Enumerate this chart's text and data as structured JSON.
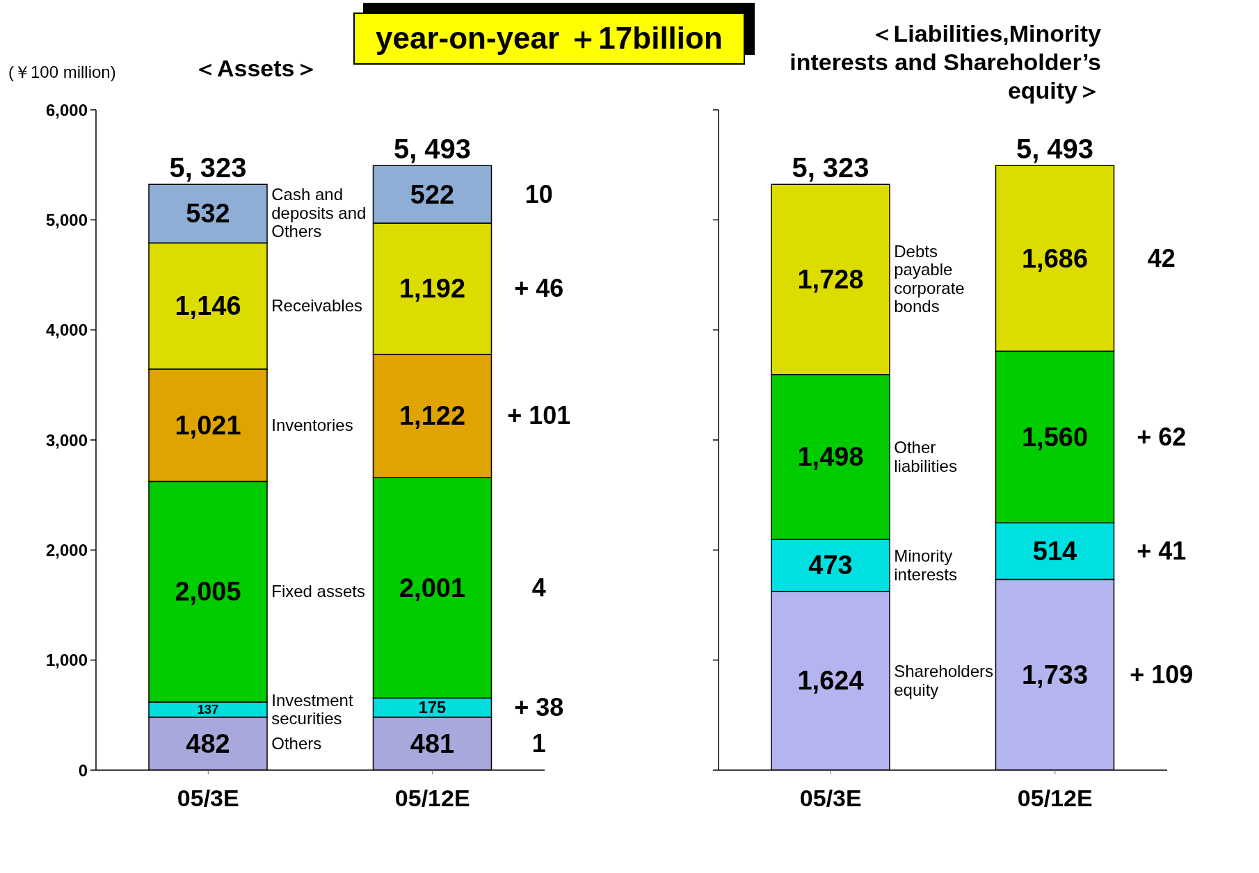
{
  "chart_data": [
    {
      "type": "bar",
      "title": "＜Assets＞",
      "subtitle": "year-on-year ＋17billion",
      "ylabel": "(￥100 million)",
      "categories": [
        "05/3E",
        "05/12E"
      ],
      "stacked": true,
      "ylim": [
        0,
        6000
      ],
      "yticks": [
        0,
        {
          "value": 1000,
          "label": "1,000"
        },
        {
          "value": 2000,
          "label": "2,000"
        },
        {
          "value": 3000,
          "label": "3,000"
        },
        {
          "value": 4000,
          "label": "4,000"
        },
        {
          "value": 5000,
          "label": "5,000"
        },
        {
          "value": 6000,
          "label": "6,000"
        }
      ],
      "series": [
        {
          "name": "Others",
          "color": "#a8a8dc",
          "values": [
            482,
            481
          ],
          "value_labels": [
            "482",
            "481"
          ]
        },
        {
          "name": "Investment securities",
          "color": "#00dede",
          "values": [
            137,
            175
          ],
          "value_labels": [
            "137",
            "175"
          ]
        },
        {
          "name": "Fixed assets",
          "color": "#00cc00",
          "values": [
            2005,
            2001
          ],
          "value_labels": [
            "2,005",
            "2,001"
          ]
        },
        {
          "name": "Inventories",
          "color": "#e0a400",
          "values": [
            1021,
            1122
          ],
          "value_labels": [
            "1,021",
            "1,122"
          ]
        },
        {
          "name": "Receivables",
          "color": "#dcdc00",
          "values": [
            1146,
            1192
          ],
          "value_labels": [
            "1,146",
            "1,192"
          ]
        },
        {
          "name": "Cash and deposits and Others",
          "color": "#8eaed6",
          "values": [
            532,
            522
          ],
          "value_labels": [
            "532",
            "522"
          ]
        }
      ],
      "totals": [
        "5, 323",
        "5, 493"
      ],
      "annotations": [
        "1",
        "+ 38",
        "4",
        "+ 101",
        "+ 46",
        "10"
      ]
    },
    {
      "type": "bar",
      "title": "＜Liabilities,Minority interests and Shareholder’s equity＞",
      "categories": [
        "05/3E",
        "05/12E"
      ],
      "stacked": true,
      "ylim": [
        0,
        6000
      ],
      "yticks": [
        0,
        1000,
        2000,
        3000,
        4000,
        5000,
        6000
      ],
      "tick_labels": "x",
      "series": [
        {
          "name": "Shareholders equity",
          "color": "#b4b4f0",
          "values": [
            1624,
            1733
          ],
          "value_labels": [
            "1,624",
            "1,733"
          ]
        },
        {
          "name": "Minority interests",
          "color": "#00e0e0",
          "values": [
            473,
            514
          ],
          "value_labels": [
            "473",
            "514"
          ]
        },
        {
          "name": "Other liabilities",
          "color": "#00cc00",
          "values": [
            1498,
            1560
          ],
          "value_labels": [
            "1,498",
            "1,560"
          ]
        },
        {
          "name": "Debts payable corporate bonds",
          "color": "#dcdc00",
          "values": [
            1728,
            1686
          ],
          "value_labels": [
            "1,728",
            "1,686"
          ]
        }
      ],
      "totals": [
        "5, 323",
        "5, 493"
      ],
      "annotations": [
        "+ 109",
        "+ 41",
        "+ 62",
        "42"
      ]
    }
  ]
}
